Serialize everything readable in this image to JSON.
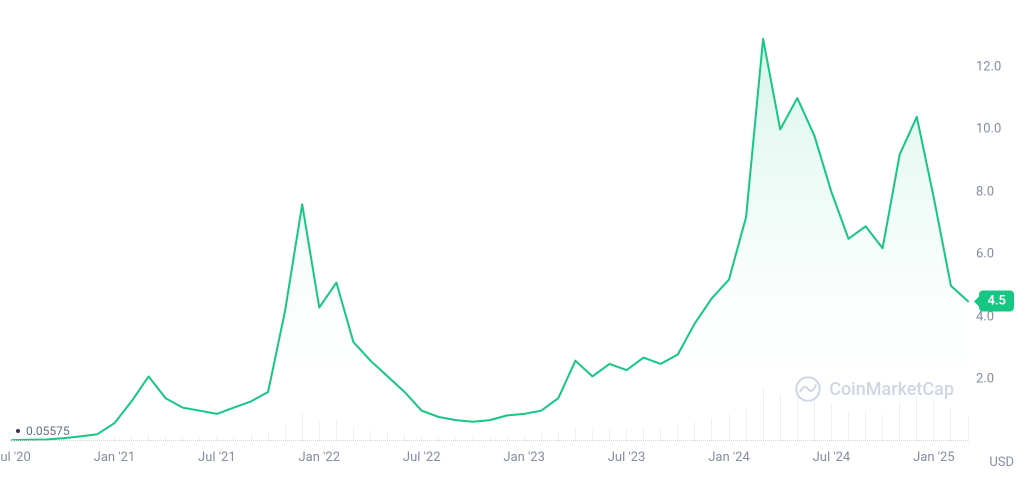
{
  "chart": {
    "type": "line-area",
    "background_color": "#ffffff",
    "line_color": "#16c784",
    "line_width": 2,
    "area_gradient_from": "#16c784",
    "area_gradient_to": "#ffffff",
    "area_opacity_from": 0.18,
    "area_opacity_to": 0.0,
    "grid_color": "#cfd6e4",
    "tick_color": "#858ca2",
    "tick_fontsize": 13,
    "xlim": [
      "2020-07",
      "2025-02"
    ],
    "ylim": [
      0,
      13.5
    ],
    "yticks": [
      2.0,
      4.0,
      6.0,
      8.0,
      10.0,
      12.0
    ],
    "ytick_labels": [
      "2.0",
      "4.0",
      "6.0",
      "8.0",
      "10.0",
      "12.0"
    ],
    "xticks_idx": [
      0,
      6,
      12,
      18,
      24,
      30,
      36,
      42,
      48,
      54
    ],
    "xtick_labels": [
      "Jul '20",
      "Jan '21",
      "Jul '21",
      "Jan '22",
      "Jul '22",
      "Jan '23",
      "Jul '23",
      "Jan '24",
      "Jul '24",
      "Jan '25"
    ],
    "currency": "USD",
    "start_value_label": "0.05575",
    "start_value": 0.05575,
    "current_value": 4.5,
    "current_value_label": "4.5",
    "series": [
      0.06,
      0.07,
      0.08,
      0.12,
      0.18,
      0.25,
      0.6,
      1.3,
      2.1,
      1.4,
      1.1,
      1.0,
      0.9,
      1.1,
      1.3,
      1.6,
      4.2,
      7.6,
      4.3,
      5.1,
      3.2,
      2.6,
      2.1,
      1.6,
      1.0,
      0.8,
      0.7,
      0.65,
      0.7,
      0.85,
      0.9,
      1.0,
      1.4,
      2.6,
      2.1,
      2.5,
      2.3,
      2.7,
      2.5,
      2.8,
      3.8,
      4.6,
      5.2,
      7.2,
      12.9,
      10.0,
      11.0,
      9.8,
      8.0,
      6.5,
      6.9,
      6.2,
      9.2,
      10.4,
      7.8,
      5.0,
      4.5
    ],
    "volume": [
      1,
      1,
      2,
      3,
      4,
      5,
      6,
      7,
      8,
      6,
      5,
      4,
      5,
      6,
      8,
      10,
      18,
      30,
      20,
      22,
      16,
      12,
      10,
      8,
      6,
      5,
      4,
      4,
      5,
      6,
      7,
      8,
      10,
      15,
      12,
      14,
      13,
      15,
      14,
      16,
      20,
      24,
      28,
      32,
      55,
      48,
      50,
      45,
      38,
      30,
      32,
      28,
      40,
      48,
      42,
      34,
      26
    ]
  },
  "watermark": {
    "label": "CoinMarketCap",
    "color": "#cfd6e4",
    "fontsize": 18
  }
}
